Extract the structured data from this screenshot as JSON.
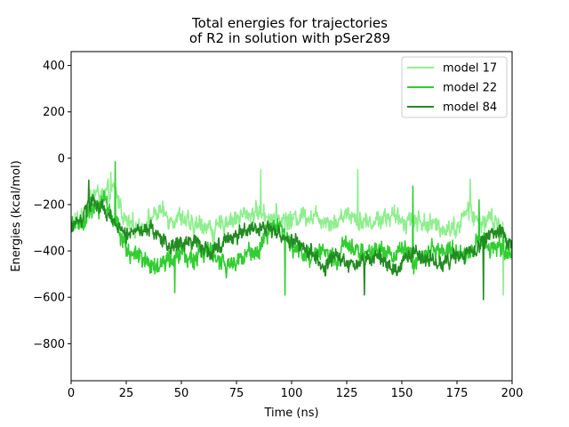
{
  "chart_data": {
    "type": "line",
    "title_line1": "Total energies for trajectories",
    "title_line2": "of R2 in solution with pSer289",
    "xlabel": "Time (ns)",
    "ylabel": "Energies (kcal/mol)",
    "xlim": [
      0,
      200
    ],
    "ylim": [
      -960,
      460
    ],
    "xticks": [
      0,
      25,
      50,
      75,
      100,
      125,
      150,
      175,
      200
    ],
    "xtick_labels": [
      "0",
      "25",
      "50",
      "75",
      "100",
      "125",
      "150",
      "175",
      "200"
    ],
    "yticks": [
      400,
      200,
      0,
      -200,
      -400,
      -600,
      -800
    ],
    "ytick_labels": [
      "400",
      "200",
      "0",
      "−200",
      "−400",
      "−600",
      "−800"
    ],
    "grid": false,
    "legend_position": "top-right",
    "series": [
      {
        "name": "model 17",
        "color": "#90ee90",
        "anchors": [
          [
            0,
            -300
          ],
          [
            5,
            -250
          ],
          [
            10,
            -150
          ],
          [
            15,
            -160
          ],
          [
            20,
            -140
          ],
          [
            25,
            -280
          ],
          [
            30,
            -300
          ],
          [
            35,
            -270
          ],
          [
            40,
            -230
          ],
          [
            45,
            -260
          ],
          [
            50,
            -250
          ],
          [
            55,
            -300
          ],
          [
            60,
            -280
          ],
          [
            65,
            -320
          ],
          [
            70,
            -270
          ],
          [
            75,
            -260
          ],
          [
            80,
            -240
          ],
          [
            85,
            -230
          ],
          [
            90,
            -250
          ],
          [
            95,
            -260
          ],
          [
            100,
            -270
          ],
          [
            105,
            -240
          ],
          [
            110,
            -250
          ],
          [
            115,
            -260
          ],
          [
            120,
            -280
          ],
          [
            125,
            -230
          ],
          [
            130,
            -260
          ],
          [
            135,
            -280
          ],
          [
            140,
            -260
          ],
          [
            145,
            -250
          ],
          [
            150,
            -270
          ],
          [
            155,
            -260
          ],
          [
            160,
            -280
          ],
          [
            165,
            -290
          ],
          [
            170,
            -300
          ],
          [
            175,
            -300
          ],
          [
            180,
            -220
          ],
          [
            185,
            -280
          ],
          [
            190,
            -260
          ],
          [
            195,
            -300
          ],
          [
            200,
            -420
          ]
        ],
        "noise": 55,
        "spikes": [
          [
            18,
            -60
          ],
          [
            86,
            -50
          ],
          [
            130,
            -50
          ],
          [
            181,
            -90
          ],
          [
            196,
            -590
          ]
        ]
      },
      {
        "name": "model 22",
        "color": "#32cd32",
        "anchors": [
          [
            0,
            -300
          ],
          [
            5,
            -270
          ],
          [
            10,
            -230
          ],
          [
            15,
            -200
          ],
          [
            20,
            -260
          ],
          [
            25,
            -400
          ],
          [
            30,
            -430
          ],
          [
            35,
            -450
          ],
          [
            40,
            -470
          ],
          [
            45,
            -430
          ],
          [
            50,
            -420
          ],
          [
            55,
            -440
          ],
          [
            60,
            -400
          ],
          [
            65,
            -420
          ],
          [
            70,
            -460
          ],
          [
            75,
            -460
          ],
          [
            80,
            -420
          ],
          [
            85,
            -380
          ],
          [
            90,
            -300
          ],
          [
            95,
            -290
          ],
          [
            100,
            -380
          ],
          [
            105,
            -420
          ],
          [
            110,
            -430
          ],
          [
            115,
            -400
          ],
          [
            120,
            -440
          ],
          [
            125,
            -370
          ],
          [
            130,
            -400
          ],
          [
            135,
            -420
          ],
          [
            140,
            -390
          ],
          [
            145,
            -430
          ],
          [
            150,
            -390
          ],
          [
            155,
            -440
          ],
          [
            160,
            -420
          ],
          [
            165,
            -400
          ],
          [
            170,
            -390
          ],
          [
            175,
            -400
          ],
          [
            180,
            -420
          ],
          [
            185,
            -360
          ],
          [
            190,
            -380
          ],
          [
            195,
            -390
          ],
          [
            200,
            -400
          ]
        ],
        "noise": 55,
        "spikes": [
          [
            20,
            -15
          ],
          [
            47,
            -580
          ],
          [
            97,
            -590
          ],
          [
            155,
            -120
          ],
          [
            185,
            -180
          ]
        ]
      },
      {
        "name": "model 84",
        "color": "#228b22",
        "anchors": [
          [
            0,
            -300
          ],
          [
            5,
            -260
          ],
          [
            10,
            -180
          ],
          [
            15,
            -230
          ],
          [
            20,
            -290
          ],
          [
            25,
            -330
          ],
          [
            30,
            -310
          ],
          [
            35,
            -300
          ],
          [
            40,
            -330
          ],
          [
            45,
            -380
          ],
          [
            50,
            -360
          ],
          [
            55,
            -350
          ],
          [
            60,
            -390
          ],
          [
            65,
            -400
          ],
          [
            70,
            -350
          ],
          [
            75,
            -330
          ],
          [
            80,
            -300
          ],
          [
            85,
            -320
          ],
          [
            90,
            -310
          ],
          [
            95,
            -330
          ],
          [
            100,
            -360
          ],
          [
            105,
            -380
          ],
          [
            110,
            -420
          ],
          [
            115,
            -470
          ],
          [
            120,
            -430
          ],
          [
            125,
            -460
          ],
          [
            130,
            -450
          ],
          [
            135,
            -440
          ],
          [
            140,
            -420
          ],
          [
            145,
            -470
          ],
          [
            150,
            -450
          ],
          [
            155,
            -410
          ],
          [
            160,
            -430
          ],
          [
            165,
            -450
          ],
          [
            170,
            -440
          ],
          [
            175,
            -430
          ],
          [
            180,
            -410
          ],
          [
            185,
            -400
          ],
          [
            190,
            -330
          ],
          [
            195,
            -320
          ],
          [
            200,
            -380
          ]
        ],
        "noise": 45,
        "spikes": [
          [
            8,
            -95
          ],
          [
            187,
            -610
          ],
          [
            133,
            -590
          ]
        ]
      }
    ]
  }
}
